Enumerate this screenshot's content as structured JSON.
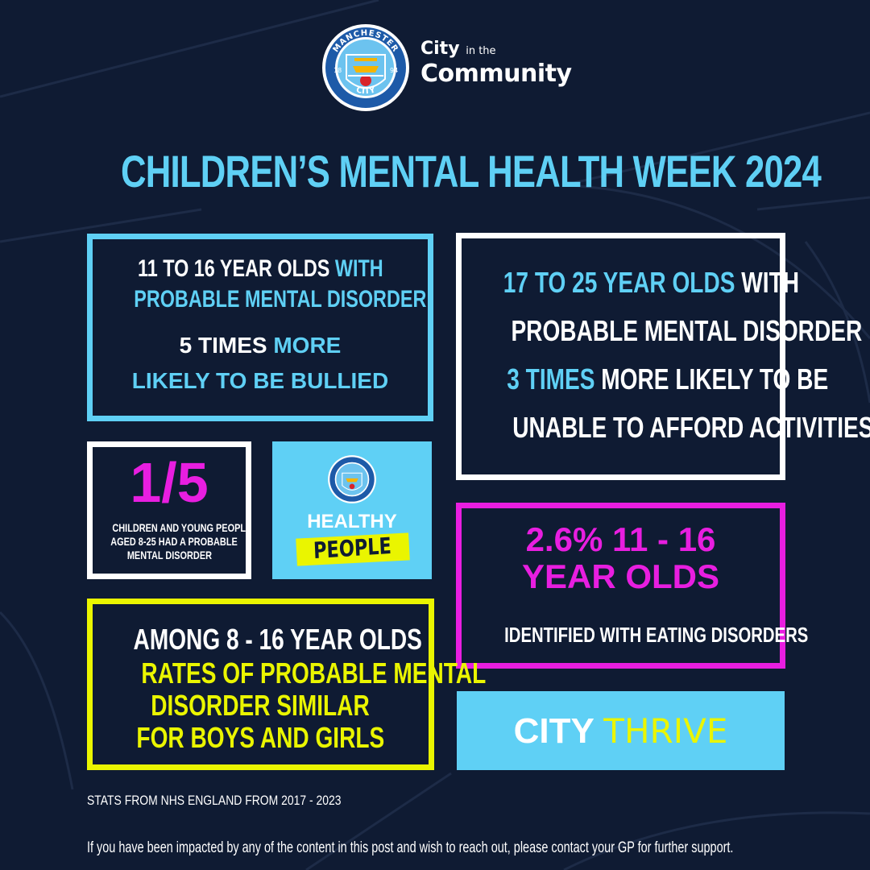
{
  "header": {
    "crest": {
      "top": "MANCHESTER",
      "bottom": "CITY",
      "left_num": "18",
      "right_num": "94"
    },
    "community_logo": {
      "line1_a": "City",
      "line1_b": "in the",
      "line2": "Community"
    }
  },
  "title": "CHILDREN’S MENTAL HEALTH WEEK 2024",
  "box_bullied": {
    "l1_a": "11 TO 16 YEAR OLDS",
    "l1_b": " WITH",
    "l2": "PROBABLE MENTAL DISORDER",
    "l3_a": "5 TIMES",
    "l3_b": " MORE",
    "l4": "LIKELY TO BE BULLIED"
  },
  "box_afford": {
    "l1_a": "17 TO 25 YEAR OLDS",
    "l1_b": " WITH",
    "l2": "PROBABLE MENTAL DISORDER",
    "l3_a": "3 TIMES",
    "l3_b": " MORE LIKELY TO BE",
    "l4": "UNABLE TO AFFORD ACTIVITIES"
  },
  "box_fraction": {
    "figure": "1/5",
    "l1": "CHILDREN AND YOUNG PEOPLE",
    "l2": "AGED 8-25 HAD A PROBABLE",
    "l3": "MENTAL DISORDER"
  },
  "box_healthy": {
    "l1": "HEALTHY",
    "l2": "PEOPLE"
  },
  "box_eating": {
    "l1": "2.6% 11 - 16",
    "l2": "YEAR OLDS",
    "l3": "IDENTIFIED WITH EATING DISORDERS"
  },
  "box_boys_girls": {
    "l1": "AMONG 8 - 16 YEAR OLDS",
    "l2": "RATES OF PROBABLE MENTAL",
    "l3": "DISORDER SIMILAR",
    "l4": "FOR BOYS AND GIRLS"
  },
  "box_thrive": {
    "a": "CITY",
    "b": "THRIVE"
  },
  "stats_source": "STATS FROM NHS ENGLAND FROM 2017 - 2023",
  "footer": "If you have been impacted by any of the content in this post and wish to reach out, please contact your GP for further support.",
  "colors": {
    "background": "#0f1b33",
    "cyan": "#5fd0f5",
    "lime": "#eaf500",
    "magenta": "#e81ee0",
    "white": "#ffffff"
  }
}
